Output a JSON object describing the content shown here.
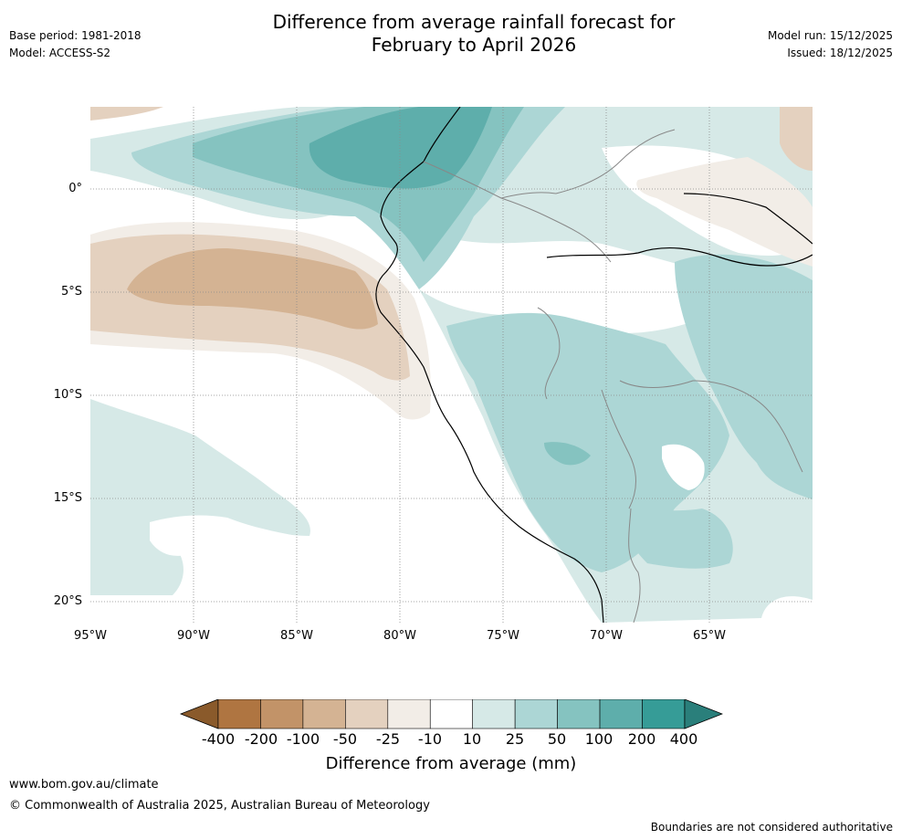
{
  "header": {
    "title_line1": "Difference from average rainfall forecast for",
    "title_line2": "February to April 2026",
    "base_period": "Base period: 1981-2018",
    "model": "Model: ACCESS-S2",
    "model_run": "Model run: 15/12/2025",
    "issued": "Issued: 18/12/2025"
  },
  "map": {
    "lat_labels": [
      "0°",
      "5°S",
      "10°S",
      "15°S",
      "20°S"
    ],
    "lon_labels": [
      "95°W",
      "90°W",
      "85°W",
      "80°W",
      "75°W",
      "70°W",
      "65°W"
    ],
    "lat_values": [
      0,
      -5,
      -10,
      -15,
      -20
    ],
    "lon_values": [
      -95,
      -90,
      -85,
      -80,
      -75,
      -70,
      -65
    ],
    "extent": {
      "lon_min": -95,
      "lon_max": -60,
      "lat_min": -21,
      "lat_max": 4
    }
  },
  "legend": {
    "title": "Difference from average (mm)",
    "ticks": [
      "-400",
      "-200",
      "-100",
      "-50",
      "-25",
      "-10",
      "10",
      "25",
      "50",
      "100",
      "200",
      "400"
    ],
    "colors": [
      "#8a5a2b",
      "#af7541",
      "#c29368",
      "#d4b393",
      "#e4d1bf",
      "#f2ede7",
      "#ffffff",
      "#d6e9e7",
      "#acd6d5",
      "#85c3c0",
      "#5eaeab",
      "#369c97",
      "#2a7f7b"
    ]
  },
  "footer": {
    "url": "www.bom.gov.au/climate",
    "copyright": "© Commonwealth of Australia 2025, Australian Bureau of Meteorology",
    "disclaimer": "Boundaries are not considered authoritative"
  }
}
